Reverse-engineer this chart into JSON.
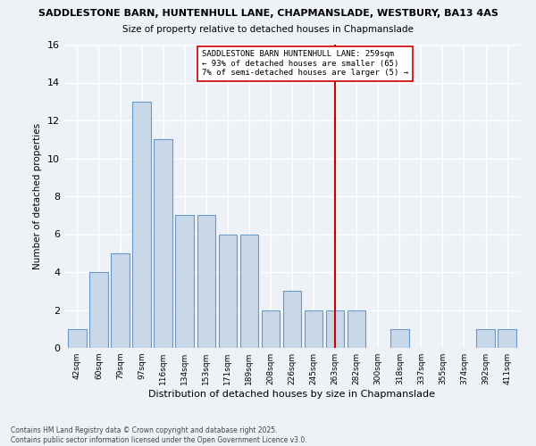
{
  "title_line1": "SADDLESTONE BARN, HUNTENHULL LANE, CHAPMANSLADE, WESTBURY, BA13 4AS",
  "title_line2": "Size of property relative to detached houses in Chapmanslade",
  "xlabel": "Distribution of detached houses by size in Chapmanslade",
  "ylabel": "Number of detached properties",
  "bar_labels": [
    "42sqm",
    "60sqm",
    "79sqm",
    "97sqm",
    "116sqm",
    "134sqm",
    "153sqm",
    "171sqm",
    "189sqm",
    "208sqm",
    "226sqm",
    "245sqm",
    "263sqm",
    "282sqm",
    "300sqm",
    "318sqm",
    "337sqm",
    "355sqm",
    "374sqm",
    "392sqm",
    "411sqm"
  ],
  "bar_heights": [
    1,
    4,
    5,
    13,
    11,
    7,
    7,
    6,
    6,
    2,
    3,
    2,
    2,
    2,
    0,
    1,
    0,
    0,
    0,
    1,
    1
  ],
  "bar_color": "#c8d8e8",
  "bar_edgecolor": "#6699cc",
  "ref_line_index": 12,
  "ref_line_color": "#cc0000",
  "annotation_title": "SADDLESTONE BARN HUNTENHULL LANE: 259sqm",
  "annotation_line2": "← 93% of detached houses are smaller (65)",
  "annotation_line3": "7% of semi-detached houses are larger (5) →",
  "ylim": [
    0,
    16
  ],
  "yticks": [
    0,
    2,
    4,
    6,
    8,
    10,
    12,
    14,
    16
  ],
  "footer_line1": "Contains HM Land Registry data © Crown copyright and database right 2025.",
  "footer_line2": "Contains public sector information licensed under the Open Government Licence v3.0.",
  "bg_color": "#eef2f7",
  "grid_color": "#ffffff"
}
